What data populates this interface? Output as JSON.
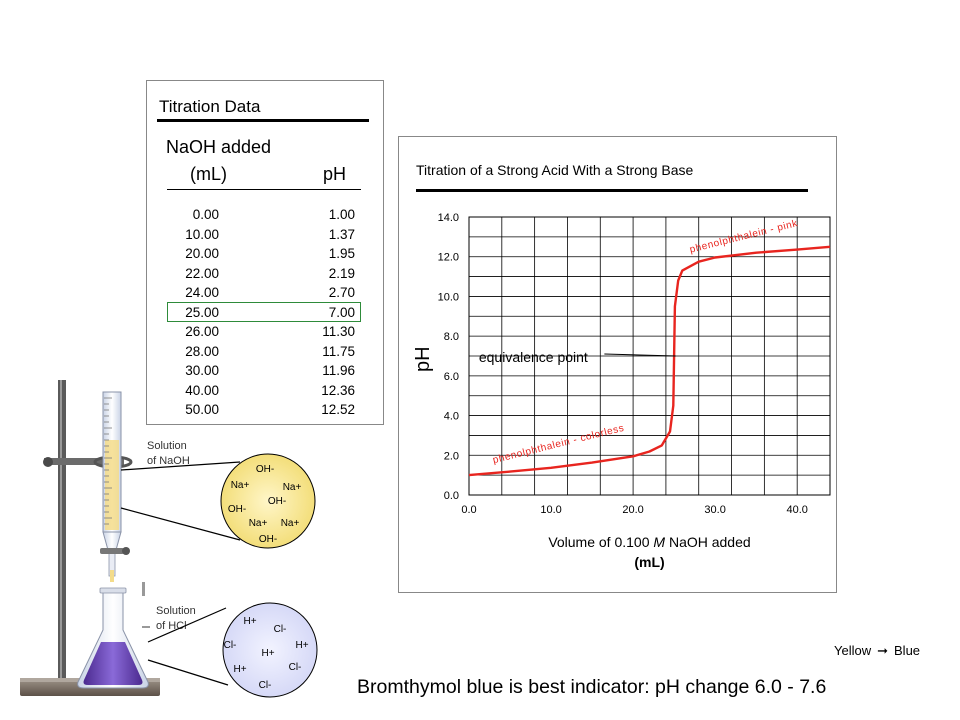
{
  "table": {
    "title": "Titration Data",
    "col_vol_line1": "NaOH added",
    "col_vol_line2": "(mL)",
    "col_ph": "pH",
    "rows": [
      {
        "vol": "0.00",
        "ph": "1.00"
      },
      {
        "vol": "10.00",
        "ph": "1.37"
      },
      {
        "vol": "20.00",
        "ph": "1.95"
      },
      {
        "vol": "22.00",
        "ph": "2.19"
      },
      {
        "vol": "24.00",
        "ph": "2.70"
      },
      {
        "vol": "25.00",
        "ph": "7.00"
      },
      {
        "vol": "26.00",
        "ph": "11.30"
      },
      {
        "vol": "28.00",
        "ph": "11.75"
      },
      {
        "vol": "30.00",
        "ph": "11.96"
      },
      {
        "vol": "40.00",
        "ph": "12.36"
      },
      {
        "vol": "50.00",
        "ph": "12.52"
      }
    ],
    "highlighted_row": 5,
    "highlight_color": "#2e8b3a"
  },
  "chart_data": {
    "type": "line",
    "title": "Titration of a Strong Acid With a Strong Base",
    "xlabel_prefix": "Volume of 0.100 ",
    "xlabel_italic": "M",
    "xlabel_suffix": " NaOH added",
    "xlabel_unit": "(mL)",
    "ylabel": "pH",
    "xlim": [
      0,
      44
    ],
    "ylim": [
      0,
      14
    ],
    "x_ticks": [
      "0.0",
      "10.0",
      "20.0",
      "30.0",
      "40.0"
    ],
    "y_ticks": [
      "0.0",
      "2.0",
      "4.0",
      "6.0",
      "8.0",
      "10.0",
      "12.0",
      "14.0"
    ],
    "grid": true,
    "line_color": "#e8251f",
    "series": [
      {
        "x": [
          0,
          5,
          10,
          15,
          20,
          22,
          23.5,
          24.5,
          24.9,
          25,
          25.1,
          25.5,
          26,
          28,
          30,
          35,
          40,
          44
        ],
        "y": [
          1.0,
          1.18,
          1.37,
          1.63,
          1.95,
          2.19,
          2.5,
          3.2,
          4.5,
          7.0,
          9.5,
          10.8,
          11.3,
          11.75,
          11.96,
          12.2,
          12.36,
          12.5
        ]
      }
    ],
    "annotations": [
      {
        "text": "phenolphthalein - pink"
      },
      {
        "text": "phenolphthalein - colorless"
      },
      {
        "text": "equivalence point"
      }
    ]
  },
  "apparatus": {
    "burette_label_1": "Solution",
    "burette_label_2": "of NaOH",
    "flask_label_1": "Solution",
    "flask_label_2": "of HCl",
    "naoh_ions": [
      "OH-",
      "Na+",
      "Na+",
      "OH-",
      "OH-",
      "Na+",
      "Na+",
      "OH-"
    ],
    "hcl_ions": [
      "H+",
      "Cl-",
      "Cl-",
      "H+",
      "H+",
      "Cl-",
      "H+",
      "Cl-"
    ]
  },
  "footer": {
    "note": "Bromthymol blue is best indicator:  pH change 6.0 - 7.6",
    "from_color": "Yellow",
    "to_color": "Blue"
  }
}
